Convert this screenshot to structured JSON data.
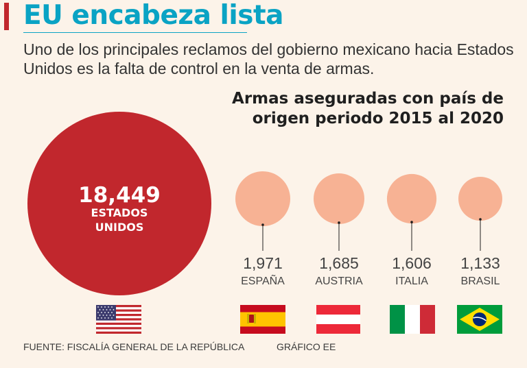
{
  "header": {
    "title": "EU encabeza lista",
    "subtitle": "Uno de los principales reclamos del gobierno mexicano hacia Estados Unidos es la falta de control en la venta de armas."
  },
  "colors": {
    "background": "#fcf3e9",
    "accent": "#c1272d",
    "title": "#0aa3c4",
    "leader_bubble": "#c1272d",
    "other_bubbles": "#f7b294"
  },
  "chart_data": {
    "type": "bubble",
    "title": "Armas aseguradas con país de origen periodo 2015 al 2020",
    "title_lines": [
      "Armas aseguradas con país de",
      "origen periodo 2015 al 2020"
    ],
    "categories": [
      "ESTADOS UNIDOS",
      "ESPAÑA",
      "AUSTRIA",
      "ITALIA",
      "BRASIL"
    ],
    "values": [
      18449,
      1971,
      1685,
      1606,
      1133
    ],
    "value_labels": [
      "18,449",
      "1,971",
      "1,685",
      "1,606",
      "1,133"
    ],
    "leader_label_lines": [
      "ESTADOS",
      "UNIDOS"
    ],
    "flags": [
      "usa-flag",
      "spain-flag",
      "austria-flag",
      "italy-flag",
      "brazil-flag"
    ]
  },
  "footer": {
    "source": "FUENTE: FISCALÍA GENERAL DE LA REPÚBLICA",
    "credit": "GRÁFICO EE"
  }
}
